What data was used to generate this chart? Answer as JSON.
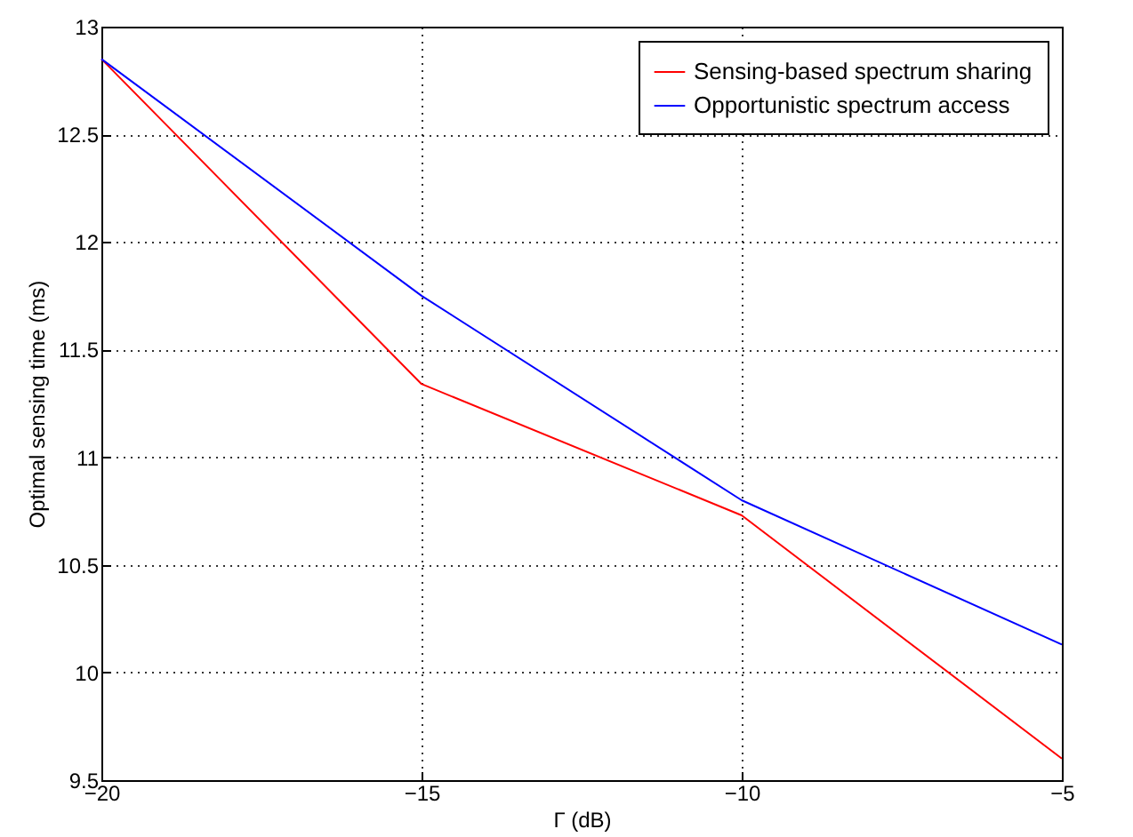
{
  "chart_data": {
    "type": "line",
    "xlabel": "Γ (dB)",
    "ylabel": "Optimal sensing time (ms)",
    "x": [
      -20,
      -15,
      -10,
      -5
    ],
    "series": [
      {
        "name": "Sensing-based spectrum sharing",
        "color": "#ff0000",
        "values": [
          12.85,
          11.34,
          10.73,
          9.6
        ]
      },
      {
        "name": "Opportunistic spectrum access",
        "color": "#0000ff",
        "values": [
          12.85,
          11.75,
          10.8,
          10.13
        ]
      }
    ],
    "xlim": [
      -20,
      -5
    ],
    "xticks": [
      -20,
      -15,
      -10,
      -5
    ],
    "ylim": [
      9.5,
      13
    ],
    "yticks": [
      9.5,
      10,
      10.5,
      11,
      11.5,
      12,
      12.5,
      13
    ],
    "grid": true,
    "legend": "top right",
    "marker": "none",
    "line_style": "solid"
  }
}
